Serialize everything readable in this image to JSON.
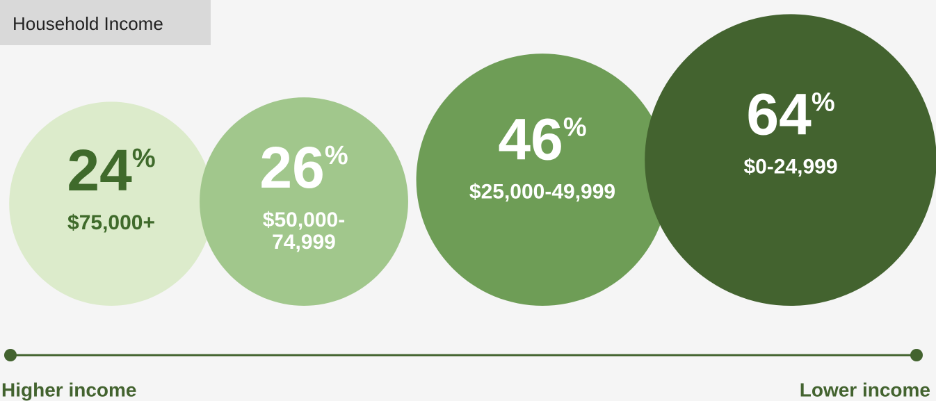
{
  "chart_data": {
    "type": "bubble",
    "title": "Household Income",
    "categories": [
      "$75,000+",
      "$50,000-74,999",
      "$25,000-49,999",
      "$0-24,999"
    ],
    "values": [
      24,
      26,
      46,
      64
    ],
    "value_labels": [
      "24%",
      "26%",
      "46%",
      "64%"
    ],
    "colors": [
      "#dcebcb",
      "#a1c78c",
      "#6e9d56",
      "#43632f"
    ],
    "annotations": [
      "Higher income",
      "Lower income"
    ]
  }
}
